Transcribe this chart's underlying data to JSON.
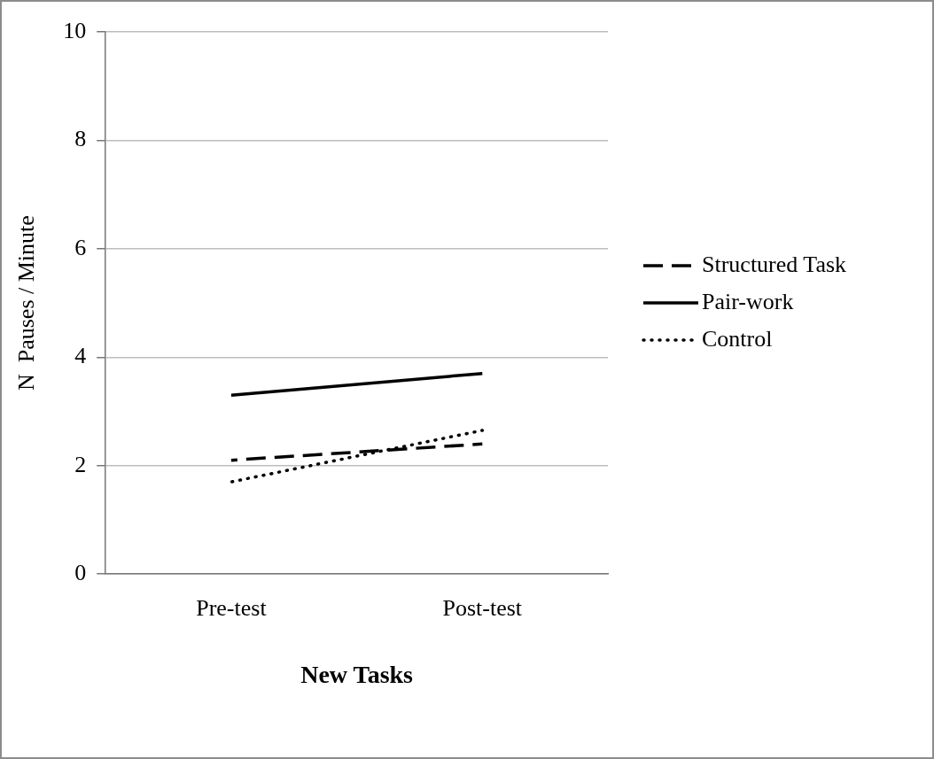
{
  "chart_data": {
    "type": "line",
    "xlabel": "New Tasks",
    "ylabel": "N  Pauses / Minute",
    "categories": [
      "Pre-test",
      "Post-test"
    ],
    "series": [
      {
        "name": "Structured Task",
        "color": "#000000",
        "line_style": "dashed",
        "values": [
          2.1,
          2.4
        ]
      },
      {
        "name": "Pair-work",
        "color": "#000000",
        "line_style": "solid",
        "values": [
          3.3,
          3.7
        ]
      },
      {
        "name": "Control",
        "color": "#000000",
        "line_style": "dotted",
        "values": [
          1.7,
          2.65
        ]
      }
    ],
    "ylim": [
      0,
      10
    ],
    "yticks": [
      0,
      2,
      4,
      6,
      8,
      10
    ],
    "grid": "y",
    "legend": "right",
    "marker": "none"
  }
}
